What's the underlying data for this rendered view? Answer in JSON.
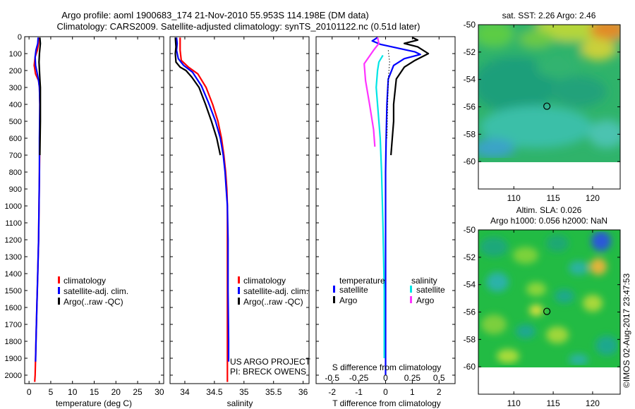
{
  "title_line1": "Argo profile: aoml 1900683_174 21-Nov-2010 55.953S 114.198E (DM data)",
  "title_line2": "Climatology: CARS2009. Satellite-adjusted climatology: synTS_20101122.nc (0.51d later)",
  "credit": {
    "project": "US ARGO PROJECT",
    "pi": "PI: BRECK OWENS",
    "imos": "©IMOS 02-Aug-2017 23:47:53"
  },
  "colors": {
    "climatology": "#ff0000",
    "satellite": "#0000ff",
    "argo": "#000000",
    "salinity_satellite": "#00e5e5",
    "salinity_argo": "#ff33ff"
  },
  "chart_data": [
    {
      "id": "temperature",
      "type": "line",
      "xlabel": "temperature (deg C)",
      "xlim": [
        -1,
        31
      ],
      "ylim": [
        0,
        2050
      ],
      "y_reversed": true,
      "xticks": [
        0,
        5,
        10,
        15,
        20,
        25,
        30
      ],
      "xtick_labels": [
        "0",
        "5",
        "10",
        "15",
        "20",
        "25",
        "30"
      ],
      "yticks": [
        0,
        100,
        200,
        300,
        400,
        500,
        600,
        700,
        800,
        900,
        1000,
        1100,
        1200,
        1300,
        1400,
        1500,
        1600,
        1700,
        1800,
        1900,
        2000
      ],
      "ytick_labels": [
        "0",
        "100",
        "200",
        "300",
        "400",
        "500",
        "600",
        "700",
        "800",
        "900",
        "1000",
        "1100",
        "1200",
        "1300",
        "1400",
        "1500",
        "1600",
        "1700",
        "1800",
        "1900",
        "2000"
      ],
      "legend": [
        "climatology",
        "satellite-adj. clim.",
        "Argo(..raw -QC)"
      ],
      "legend_position": "lower-right",
      "series": [
        {
          "name": "climatology",
          "color_key": "climatology",
          "points": [
            [
              2.2,
              5
            ],
            [
              2.2,
              40
            ],
            [
              1.9,
              80
            ],
            [
              1.4,
              120
            ],
            [
              1.2,
              170
            ],
            [
              1.5,
              220
            ],
            [
              2.2,
              260
            ],
            [
              2.4,
              300
            ],
            [
              2.5,
              400
            ],
            [
              2.5,
              600
            ],
            [
              2.4,
              800
            ],
            [
              2.3,
              1000
            ],
            [
              2.2,
              1200
            ],
            [
              2.0,
              1400
            ],
            [
              1.8,
              1600
            ],
            [
              1.6,
              1800
            ],
            [
              1.4,
              2000
            ],
            [
              1.3,
              2040
            ]
          ]
        },
        {
          "name": "satellite-adj. clim.",
          "color_key": "satellite",
          "points": [
            [
              2.1,
              5
            ],
            [
              2.0,
              40
            ],
            [
              1.6,
              80
            ],
            [
              1.4,
              120
            ],
            [
              1.5,
              170
            ],
            [
              1.9,
              220
            ],
            [
              2.2,
              260
            ],
            [
              2.4,
              300
            ],
            [
              2.5,
              400
            ],
            [
              2.4,
              600
            ],
            [
              2.4,
              800
            ],
            [
              2.3,
              1000
            ],
            [
              2.2,
              1200
            ],
            [
              2.0,
              1400
            ],
            [
              1.8,
              1600
            ],
            [
              1.6,
              1800
            ],
            [
              1.5,
              1920
            ]
          ]
        },
        {
          "name": "Argo(..raw -QC)",
          "color_key": "argo",
          "points": [
            [
              2.5,
              5
            ],
            [
              2.6,
              40
            ],
            [
              2.4,
              100
            ],
            [
              2.3,
              150
            ],
            [
              2.4,
              200
            ],
            [
              2.5,
              250
            ],
            [
              2.6,
              300
            ],
            [
              2.6,
              500
            ],
            [
              2.5,
              700
            ]
          ]
        }
      ]
    },
    {
      "id": "salinity",
      "type": "line",
      "xlabel": "salinity",
      "xlim": [
        33.75,
        36.1
      ],
      "ylim": [
        0,
        2050
      ],
      "y_reversed": true,
      "xticks": [
        34,
        34.5,
        35,
        35.5,
        36
      ],
      "xtick_labels": [
        "34",
        "34.5",
        "35",
        "35.5",
        "36"
      ],
      "legend": [
        "climatology",
        "satellite-adj. clim.",
        "Argo(..raw -QC)"
      ],
      "legend_position": "lower-right",
      "series": [
        {
          "name": "climatology",
          "color_key": "climatology",
          "points": [
            [
              33.92,
              5
            ],
            [
              33.92,
              80
            ],
            [
              33.94,
              140
            ],
            [
              34.06,
              180
            ],
            [
              34.22,
              220
            ],
            [
              34.36,
              300
            ],
            [
              34.47,
              400
            ],
            [
              34.56,
              500
            ],
            [
              34.62,
              600
            ],
            [
              34.66,
              700
            ],
            [
              34.69,
              800
            ],
            [
              34.71,
              900
            ],
            [
              34.72,
              1000
            ],
            [
              34.72,
              1200
            ],
            [
              34.72,
              1400
            ],
            [
              34.72,
              1600
            ],
            [
              34.72,
              1800
            ],
            [
              34.72,
              2000
            ],
            [
              34.72,
              2040
            ]
          ]
        },
        {
          "name": "satellite-adj. clim.",
          "color_key": "satellite",
          "points": [
            [
              33.86,
              5
            ],
            [
              33.87,
              40
            ],
            [
              33.86,
              80
            ],
            [
              33.89,
              130
            ],
            [
              33.98,
              170
            ],
            [
              34.13,
              210
            ],
            [
              34.28,
              290
            ],
            [
              34.4,
              390
            ],
            [
              34.52,
              500
            ],
            [
              34.6,
              600
            ],
            [
              34.65,
              700
            ],
            [
              34.68,
              800
            ],
            [
              34.7,
              900
            ],
            [
              34.72,
              1000
            ],
            [
              34.73,
              1200
            ],
            [
              34.73,
              1500
            ],
            [
              34.74,
              1800
            ],
            [
              34.74,
              1920
            ]
          ]
        },
        {
          "name": "Argo(..raw -QC)",
          "color_key": "argo",
          "points": [
            [
              33.84,
              5
            ],
            [
              33.85,
              60
            ],
            [
              33.84,
              100
            ],
            [
              33.85,
              150
            ],
            [
              33.92,
              180
            ],
            [
              34.02,
              200
            ],
            [
              34.12,
              240
            ],
            [
              34.24,
              300
            ],
            [
              34.35,
              400
            ],
            [
              34.45,
              500
            ],
            [
              34.54,
              600
            ],
            [
              34.6,
              700
            ]
          ]
        }
      ]
    },
    {
      "id": "difference",
      "type": "line",
      "xlabel": "T difference from climatology",
      "x2label": "S difference from climatology",
      "xlim": [
        -2.6,
        2.6
      ],
      "ylim": [
        0,
        2050
      ],
      "y_reversed": true,
      "xticks": [
        -2,
        -1,
        0,
        1,
        2
      ],
      "xtick_labels": [
        "-2",
        "-1",
        "0",
        "1",
        "2"
      ],
      "x2ticks": [
        -2,
        -1,
        0,
        1,
        2
      ],
      "x2tick_labels": [
        "-0.5",
        "-0.25",
        "0",
        "0.25",
        "0.5"
      ],
      "legend_groups": [
        {
          "title": "temperature",
          "items": [
            {
              "label": "satellite",
              "color_key": "satellite"
            },
            {
              "label": "Argo",
              "color_key": "argo"
            }
          ]
        },
        {
          "title": "salinity",
          "items": [
            {
              "label": "satellite",
              "color_key": "salinity_satellite"
            },
            {
              "label": "Argo",
              "color_key": "salinity_argo"
            }
          ]
        }
      ],
      "series": [
        {
          "name": "temperature satellite",
          "color_key": "satellite",
          "dash": false,
          "points": [
            [
              -0.3,
              5
            ],
            [
              -0.5,
              25
            ],
            [
              -0.2,
              45
            ],
            [
              1.1,
              90
            ],
            [
              1.3,
              105
            ],
            [
              0.7,
              130
            ],
            [
              0.3,
              170
            ],
            [
              0.1,
              250
            ],
            [
              0.05,
              400
            ],
            [
              0.02,
              600
            ],
            [
              0,
              800
            ],
            [
              0,
              1200
            ],
            [
              0,
              1600
            ],
            [
              0,
              2000
            ]
          ]
        },
        {
          "name": "temperature Argo",
          "color_key": "argo",
          "dash": false,
          "points": [
            [
              1.0,
              5
            ],
            [
              1.2,
              20
            ],
            [
              0.7,
              40
            ],
            [
              1.2,
              60
            ],
            [
              1.6,
              100
            ],
            [
              1.1,
              140
            ],
            [
              0.7,
              180
            ],
            [
              0.4,
              250
            ],
            [
              0.3,
              400
            ],
            [
              0.3,
              500
            ],
            [
              0.25,
              600
            ],
            [
              0.2,
              700
            ]
          ]
        },
        {
          "name": "salinity satellite",
          "color_key": "salinity_satellite",
          "dash": false,
          "points": [
            [
              -0.1,
              110
            ],
            [
              -0.25,
              150
            ],
            [
              -0.3,
              200
            ],
            [
              -0.35,
              300
            ],
            [
              -0.3,
              400
            ],
            [
              -0.2,
              600
            ],
            [
              -0.15,
              800
            ],
            [
              -0.1,
              1100
            ],
            [
              -0.05,
              1500
            ],
            [
              -0.05,
              1900
            ]
          ]
        },
        {
          "name": "salinity Argo",
          "color_key": "salinity_argo",
          "dash": false,
          "points": [
            [
              -0.3,
              5
            ],
            [
              -0.25,
              40
            ],
            [
              -0.45,
              80
            ],
            [
              -0.8,
              160
            ],
            [
              -0.75,
              260
            ],
            [
              -0.6,
              400
            ],
            [
              -0.45,
              550
            ],
            [
              -0.4,
              650
            ]
          ]
        },
        {
          "name": "zero reference",
          "color_key": "argo",
          "dash": true,
          "points": [
            [
              0.1,
              80
            ],
            [
              0.15,
              150
            ],
            [
              0.1,
              250
            ],
            [
              0.08,
              400
            ],
            [
              0.05,
              600
            ]
          ]
        }
      ]
    },
    {
      "id": "sst_map",
      "type": "heatmap",
      "title": "sat. SST: 2.26 Argo: 2.46",
      "xlim": [
        105.5,
        123.5
      ],
      "ylim": [
        -62,
        -50
      ],
      "xticks": [
        110,
        115,
        120
      ],
      "xtick_labels": [
        "110",
        "115",
        "120"
      ],
      "yticks": [
        -50,
        -52,
        -54,
        -56,
        -58,
        -60
      ],
      "ytick_labels": [
        "-50",
        "-52",
        "-54",
        "-56",
        "-58",
        "-60"
      ],
      "data_ylim": [
        -60,
        -50
      ],
      "marker": [
        114.198,
        -55.953
      ],
      "base_color": "#2fb36a"
    },
    {
      "id": "sla_map",
      "type": "heatmap",
      "title_line1": "Altim. SLA: 0.026",
      "title_line2": "Argo h1000: 0.056 h2000: NaN",
      "xlim": [
        105.5,
        123.5
      ],
      "ylim": [
        -62,
        -50
      ],
      "xticks": [
        110,
        115,
        120
      ],
      "xtick_labels": [
        "110",
        "115",
        "120"
      ],
      "yticks": [
        -50,
        -52,
        -54,
        -56,
        -58,
        -60
      ],
      "ytick_labels": [
        "-50",
        "-52",
        "-54",
        "-56",
        "-58",
        "-60"
      ],
      "data_ylim": [
        -60,
        -50
      ],
      "marker": [
        114.198,
        -55.953
      ],
      "base_color": "#22bb44"
    }
  ]
}
